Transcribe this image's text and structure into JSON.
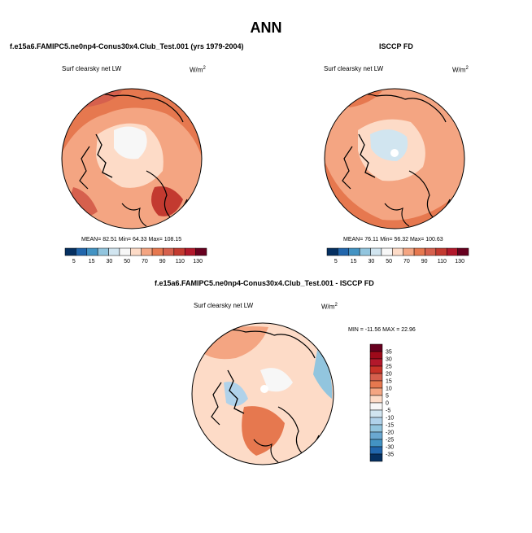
{
  "figure": {
    "title": "ANN"
  },
  "panels": [
    {
      "caption": "f.e15a6.FAMIPC5.ne0np4-Conus30x4.Club_Test.001 (yrs 1979-2004)",
      "variable": "Surf clearsky net LW",
      "units": "W/m",
      "units_sup": "2",
      "stats": "MEAN=  82.51   Min=  64.33   Max= 108.15",
      "colorbar_labels": [
        "5",
        "15",
        "30",
        "50",
        "70",
        "90",
        "110",
        "130"
      ]
    },
    {
      "caption": "ISCCP FD",
      "variable": "Surf clearsky net LW",
      "units": "W/m",
      "units_sup": "2",
      "stats": "MEAN=  76.11   Min=  56.32   Max= 100.63",
      "colorbar_labels": [
        "5",
        "15",
        "30",
        "50",
        "70",
        "90",
        "110",
        "130"
      ]
    },
    {
      "caption": "f.e15a6.FAMIPC5.ne0np4-Conus30x4.Club_Test.001 - ISCCP FD",
      "variable": "Surf clearsky net LW",
      "units": "W/m",
      "units_sup": "2",
      "stats": "MIN = -11.56  MAX =  22.96",
      "colorbar_labels": [
        "35",
        "30",
        "25",
        "20",
        "15",
        "10",
        "5",
        "0",
        "-5",
        "-10",
        "-15",
        "-20",
        "-25",
        "-30",
        "-35"
      ]
    }
  ],
  "colors": {
    "abs_scale": [
      "#053061",
      "#2166ac",
      "#4393c3",
      "#92c5de",
      "#d1e5f0",
      "#f7f7f7",
      "#fddbc7",
      "#f4a582",
      "#e6784f",
      "#d6604d",
      "#c33a30",
      "#b2182b",
      "#67001f"
    ],
    "diff_scale": [
      "#67001f",
      "#9e0a1a",
      "#b2182b",
      "#c83328",
      "#d6604d",
      "#e6784f",
      "#f4a582",
      "#fddbc7",
      "#f7f7f7",
      "#d1e5f0",
      "#b0d2ea",
      "#92c5de",
      "#6aa8d1",
      "#4393c3",
      "#2166ac",
      "#053061"
    ]
  },
  "chart_data": [
    {
      "type": "heatmap",
      "title": "f.e15a6.FAMIPC5.ne0np4-Conus30x4.Club_Test.001 (yrs 1979-2004)",
      "variable": "Surf clearsky net LW",
      "units": "W/m2",
      "projection": "polar stereographic (North Pole)",
      "levels": [
        5,
        15,
        30,
        50,
        70,
        90,
        110,
        130
      ],
      "mean": 82.51,
      "min": 64.33,
      "max": 108.15
    },
    {
      "type": "heatmap",
      "title": "ISCCP FD",
      "variable": "Surf clearsky net LW",
      "units": "W/m2",
      "projection": "polar stereographic (North Pole)",
      "levels": [
        5,
        15,
        30,
        50,
        70,
        90,
        110,
        130
      ],
      "mean": 76.11,
      "min": 56.32,
      "max": 100.63
    },
    {
      "type": "heatmap",
      "title": "f.e15a6.FAMIPC5.ne0np4-Conus30x4.Club_Test.001 - ISCCP FD",
      "variable": "Surf clearsky net LW",
      "units": "W/m2",
      "projection": "polar stereographic (North Pole)",
      "levels": [
        -35,
        -30,
        -25,
        -20,
        -15,
        -10,
        -5,
        0,
        5,
        10,
        15,
        20,
        25,
        30,
        35
      ],
      "min": -11.56,
      "max": 22.96
    }
  ]
}
